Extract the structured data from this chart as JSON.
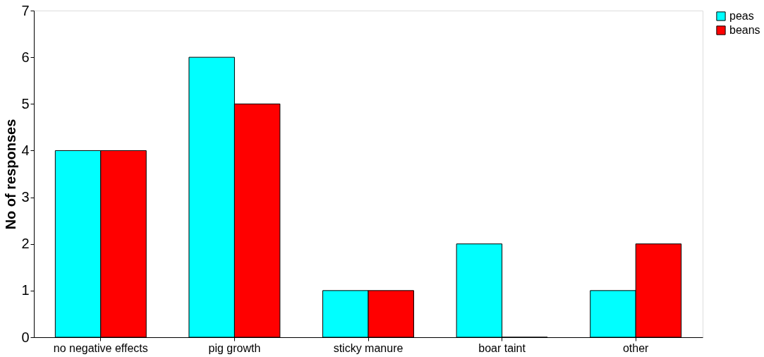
{
  "chart_data": {
    "type": "bar",
    "ylabel": "No of responses",
    "categories": [
      "no negative effects",
      "pig growth",
      "sticky manure",
      "boar taint",
      "other"
    ],
    "series": [
      {
        "name": "peas",
        "color": "#00ffff",
        "values": [
          4,
          6,
          1,
          2,
          1
        ]
      },
      {
        "name": "beans",
        "color": "#ff0000",
        "values": [
          4,
          5,
          1,
          0,
          2
        ]
      }
    ],
    "ylim": [
      0,
      7
    ],
    "yticks": [
      0,
      1,
      2,
      3,
      4,
      5,
      6,
      7
    ],
    "grid": false,
    "legend": "right"
  }
}
